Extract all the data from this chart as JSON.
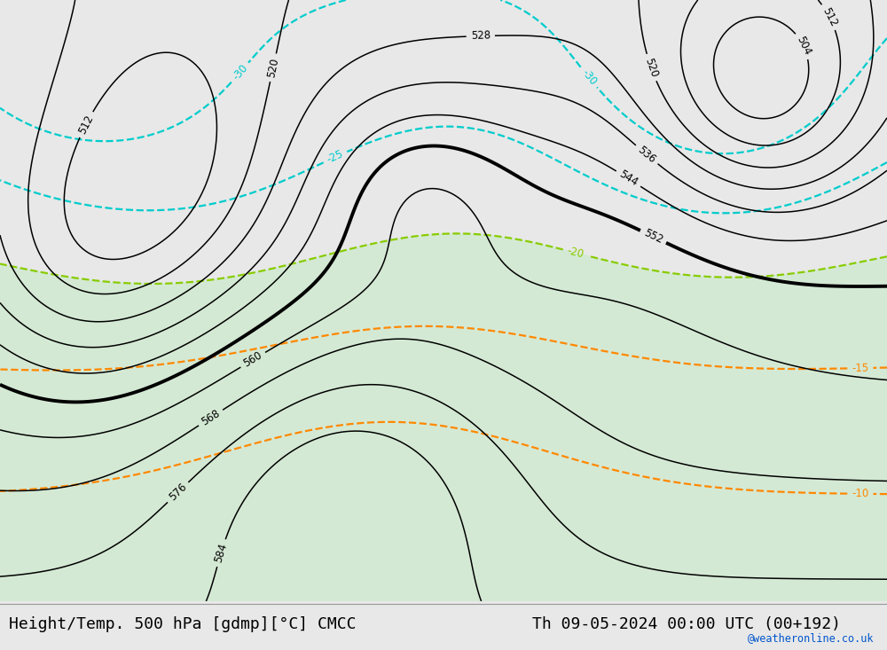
{
  "title_left": "Height/Temp. 500 hPa [gdmp][°C] CMCC",
  "title_right": "Th 09-05-2024 00:00 UTC (00+192)",
  "watermark": "@weatheronline.co.uk",
  "land_color": "#c8eac8",
  "sea_color": "#e0e0e0",
  "height_contour_color": "#000000",
  "temp_cyan_color": "#00cccc",
  "temp_green_color": "#88cc00",
  "temp_orange_color": "#ff8800",
  "bottom_bar_color": "#f0f0f0",
  "font_size_title": 13,
  "map_extent": [
    -25,
    45,
    27,
    72
  ],
  "height_levels": [
    504,
    512,
    520,
    528,
    536,
    544,
    552,
    560,
    568,
    576,
    584
  ],
  "bold_level": 552,
  "temp_levels_cyan": [
    -30,
    -25
  ],
  "temp_levels_green": [
    -20
  ],
  "temp_levels_orange": [
    -15,
    -10
  ],
  "green_shade_below": -20
}
